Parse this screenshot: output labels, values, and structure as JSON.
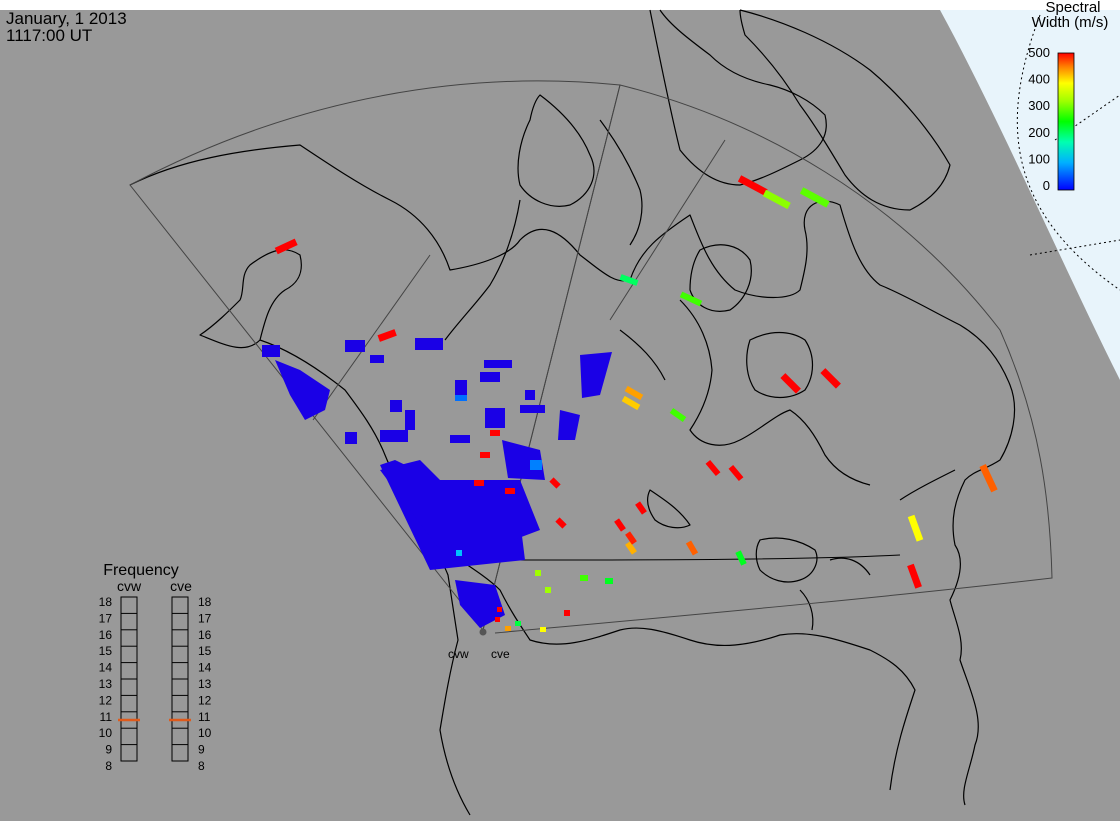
{
  "header": {
    "date": "January, 1 2013",
    "time": "1117:00 UT"
  },
  "legend": {
    "title_line1": "Spectral",
    "title_line2": "Width (m/s)",
    "ticks": [
      "500",
      "400",
      "300",
      "200",
      "100",
      "0"
    ]
  },
  "frequency": {
    "title": "Frequency",
    "radar_left": "cvw",
    "radar_right": "cve",
    "ticks": [
      "18",
      "17",
      "16",
      "15",
      "14",
      "13",
      "12",
      "11",
      "10",
      "9",
      "8"
    ],
    "cvw_value": 10.5,
    "cve_value": 10.5
  },
  "radar_labels": {
    "cvw": "cvw",
    "cve": "cve"
  },
  "colors": {
    "background": "#999999",
    "daylight": "#e8f4fb",
    "coast": "#000000",
    "frequency_marker": "#e05a1a",
    "scale": [
      "#0000ff",
      "#00a0ff",
      "#00ffc0",
      "#00ff00",
      "#a0ff00",
      "#ffff00",
      "#ffa000",
      "#ff4000",
      "#ff0000"
    ]
  }
}
